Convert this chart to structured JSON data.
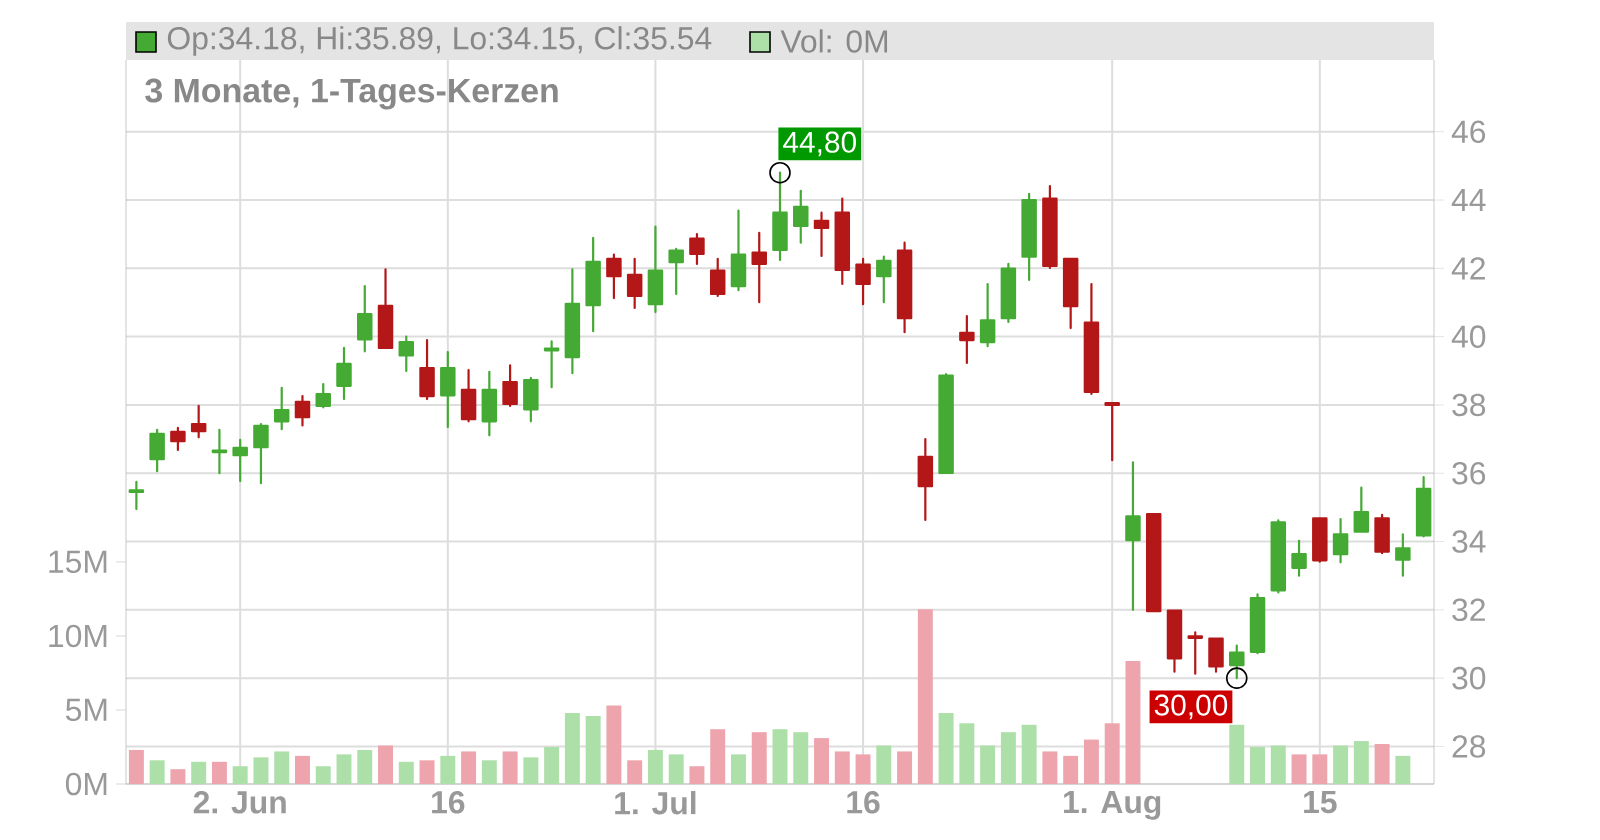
{
  "chart_data": {
    "type": "candlestick",
    "title": "3 Monate, 1-Tages-Kerzen",
    "annotations": [
      "Op:34.18, Hi:35.89, Lo:34.15, Cl:35.54",
      "Vol: 0M",
      "44,80",
      "30,00"
    ],
    "categories": [
      null,
      null,
      null,
      null,
      null,
      "2. Jun",
      null,
      null,
      null,
      null,
      null,
      null,
      null,
      null,
      null,
      "16",
      null,
      null,
      null,
      null,
      null,
      null,
      null,
      null,
      null,
      "1. Jul",
      null,
      null,
      null,
      null,
      null,
      null,
      null,
      null,
      null,
      "16",
      null,
      null,
      null,
      null,
      null,
      null,
      null,
      null,
      null,
      null,
      null,
      "1. Aug",
      null,
      null,
      null,
      null,
      null,
      null,
      null,
      null,
      null,
      "15",
      null,
      null,
      null,
      null,
      null
    ],
    "series": [
      {
        "axis": "y2",
        "ohlc": [
          [
            35.45,
            35.75,
            34.95,
            35.5
          ],
          [
            36.41,
            37.27,
            36.06,
            37.15
          ],
          [
            37.21,
            37.33,
            36.68,
            36.94
          ],
          [
            37.44,
            37.97,
            37.05,
            37.23
          ],
          [
            36.62,
            37.27,
            36.0,
            36.66
          ],
          [
            36.53,
            36.98,
            35.77,
            36.74
          ],
          [
            36.76,
            37.44,
            35.71,
            37.39
          ],
          [
            37.52,
            38.5,
            37.29,
            37.85
          ],
          [
            38.09,
            38.26,
            37.4,
            37.64
          ],
          [
            37.97,
            38.61,
            37.93,
            38.32
          ],
          [
            38.56,
            39.67,
            38.17,
            39.2
          ],
          [
            39.92,
            41.48,
            39.57,
            40.66
          ],
          [
            40.9,
            41.97,
            39.67,
            39.67
          ],
          [
            39.45,
            40.0,
            38.99,
            39.84
          ],
          [
            39.08,
            39.9,
            38.17,
            38.26
          ],
          [
            38.28,
            39.55,
            37.35,
            39.08
          ],
          [
            38.44,
            39.02,
            37.52,
            37.58
          ],
          [
            37.52,
            38.97,
            37.11,
            38.44
          ],
          [
            38.67,
            39.16,
            37.97,
            38.03
          ],
          [
            37.87,
            38.79,
            37.52,
            38.73
          ],
          [
            39.6,
            39.86,
            38.52,
            39.65
          ],
          [
            39.4,
            41.97,
            38.93,
            40.96
          ],
          [
            40.92,
            42.89,
            40.16,
            42.19
          ],
          [
            42.28,
            42.4,
            41.13,
            41.77
          ],
          [
            41.81,
            42.28,
            40.84,
            41.19
          ],
          [
            40.95,
            43.22,
            40.72,
            41.93
          ],
          [
            42.18,
            42.57,
            41.25,
            42.52
          ],
          [
            42.87,
            43.0,
            42.13,
            42.42
          ],
          [
            41.93,
            42.28,
            41.19,
            41.25
          ],
          [
            41.48,
            43.69,
            41.36,
            42.4
          ],
          [
            42.46,
            43.04,
            41.01,
            42.13
          ],
          [
            42.54,
            44.8,
            42.24,
            43.63
          ],
          [
            43.24,
            44.27,
            42.75,
            43.8
          ],
          [
            43.39,
            43.63,
            42.36,
            43.18
          ],
          [
            43.63,
            44.04,
            41.54,
            41.95
          ],
          [
            42.11,
            42.28,
            40.95,
            41.54
          ],
          [
            41.77,
            42.34,
            41.01,
            42.22
          ],
          [
            42.52,
            42.75,
            40.13,
            40.54
          ],
          [
            36.48,
            37.0,
            34.63,
            35.62
          ],
          [
            36.01,
            38.9,
            36.01,
            38.86
          ],
          [
            40.11,
            40.6,
            39.23,
            39.9
          ],
          [
            39.84,
            41.54,
            39.72,
            40.48
          ],
          [
            40.54,
            42.13,
            40.43,
            41.99
          ],
          [
            42.34,
            44.18,
            41.66,
            44.0
          ],
          [
            44.04,
            44.41,
            42.01,
            42.07
          ],
          [
            42.28,
            42.28,
            40.25,
            40.89
          ],
          [
            40.41,
            41.54,
            38.32,
            38.38
          ],
          [
            38.05,
            38.05,
            36.38,
            38.0
          ],
          [
            34.04,
            36.32,
            32.0,
            34.74
          ],
          [
            34.8,
            34.8,
            31.96,
            31.96
          ],
          [
            31.98,
            31.98,
            30.19,
            30.58
          ],
          [
            31.22,
            31.34,
            30.13,
            31.18
          ],
          [
            31.16,
            31.16,
            30.19,
            30.34
          ],
          [
            30.38,
            30.95,
            30.0,
            30.75
          ],
          [
            30.77,
            32.45,
            30.73,
            32.34
          ],
          [
            32.57,
            34.62,
            32.51,
            34.56
          ],
          [
            33.23,
            34.02,
            33.0,
            33.63
          ],
          [
            34.68,
            34.68,
            33.41,
            33.45
          ],
          [
            33.63,
            34.66,
            33.39,
            34.21
          ],
          [
            34.29,
            35.58,
            34.29,
            34.86
          ],
          [
            34.68,
            34.78,
            33.66,
            33.7
          ],
          [
            33.47,
            34.21,
            33.0,
            33.8
          ],
          [
            34.18,
            35.89,
            34.15,
            35.54
          ]
        ],
        "colors": [
          "#44aa33",
          "#44aa33",
          "#b31717",
          "#b31717",
          "#44aa33",
          "#44aa33",
          "#44aa33",
          "#44aa33",
          "#b31717",
          "#44aa33",
          "#44aa33",
          "#44aa33",
          "#b31717",
          "#44aa33",
          "#b31717",
          "#44aa33",
          "#b31717",
          "#44aa33",
          "#b31717",
          "#44aa33",
          "#44aa33",
          "#44aa33",
          "#44aa33",
          "#b31717",
          "#b31717",
          "#44aa33",
          "#44aa33",
          "#b31717",
          "#b31717",
          "#44aa33",
          "#b31717",
          "#44aa33",
          "#44aa33",
          "#b31717",
          "#b31717",
          "#b31717",
          "#44aa33",
          "#b31717",
          "#b31717",
          "#44aa33",
          "#b31717",
          "#44aa33",
          "#44aa33",
          "#44aa33",
          "#b31717",
          "#b31717",
          "#b31717",
          "#b31717",
          "#44aa33",
          "#b31717",
          "#b31717",
          "#b31717",
          "#b31717",
          "#44aa33",
          "#44aa33",
          "#44aa33",
          "#44aa33",
          "#b31717",
          "#44aa33",
          "#44aa33",
          "#b31717",
          "#44aa33",
          "#44aa33"
        ]
      },
      {
        "type": "bar",
        "axis": "y",
        "values": [
          2.3,
          1.6,
          1.0,
          1.5,
          1.5,
          1.2,
          1.8,
          2.2,
          1.9,
          1.2,
          2.0,
          2.3,
          2.6,
          1.5,
          1.6,
          1.9,
          2.2,
          1.6,
          2.2,
          1.8,
          2.5,
          4.8,
          4.6,
          5.3,
          1.6,
          2.3,
          2.0,
          1.2,
          3.7,
          2.0,
          3.5,
          3.7,
          3.5,
          3.1,
          2.2,
          2.0,
          2.6,
          2.2,
          11.8,
          4.8,
          4.1,
          2.6,
          3.5,
          4.0,
          2.2,
          1.9,
          3.0,
          4.1,
          8.3,
          null,
          null,
          null,
          null,
          4.0,
          2.5,
          2.6,
          2.0,
          2.0,
          2.6,
          2.9,
          2.7,
          1.9,
          0
        ],
        "colors": [
          "#eda4ad",
          "#addfa8",
          "#eda4ad",
          "#addfa8",
          "#eda4ad",
          "#addfa8",
          "#addfa8",
          "#addfa8",
          "#eda4ad",
          "#addfa8",
          "#addfa8",
          "#addfa8",
          "#eda4ad",
          "#addfa8",
          "#eda4ad",
          "#addfa8",
          "#eda4ad",
          "#addfa8",
          "#eda4ad",
          "#addfa8",
          "#addfa8",
          "#addfa8",
          "#addfa8",
          "#eda4ad",
          "#eda4ad",
          "#addfa8",
          "#addfa8",
          "#eda4ad",
          "#eda4ad",
          "#addfa8",
          "#eda4ad",
          "#addfa8",
          "#addfa8",
          "#eda4ad",
          "#eda4ad",
          "#eda4ad",
          "#addfa8",
          "#eda4ad",
          "#eda4ad",
          "#addfa8",
          "#addfa8",
          "#addfa8",
          "#addfa8",
          "#addfa8",
          "#eda4ad",
          "#eda4ad",
          "#eda4ad",
          "#eda4ad",
          "#eda4ad",
          null,
          null,
          null,
          null,
          "#addfa8",
          "#addfa8",
          "#addfa8",
          "#eda4ad",
          "#eda4ad",
          "#addfa8",
          "#addfa8",
          "#eda4ad",
          "#addfa8",
          "#addfa8"
        ]
      }
    ],
    "ylim": [
      0,
      48.9
    ],
    "yticks": [
      {
        "value": 0,
        "label": "0M"
      },
      {
        "value": 5,
        "label": "5M"
      },
      {
        "value": 10,
        "label": "10M"
      },
      {
        "value": 15,
        "label": "15M"
      }
    ],
    "y2lim": [
      26.9,
      48.1
    ],
    "y2ticks": [
      28,
      30,
      32,
      34,
      36,
      38,
      40,
      42,
      44,
      46
    ],
    "grid": true
  }
}
